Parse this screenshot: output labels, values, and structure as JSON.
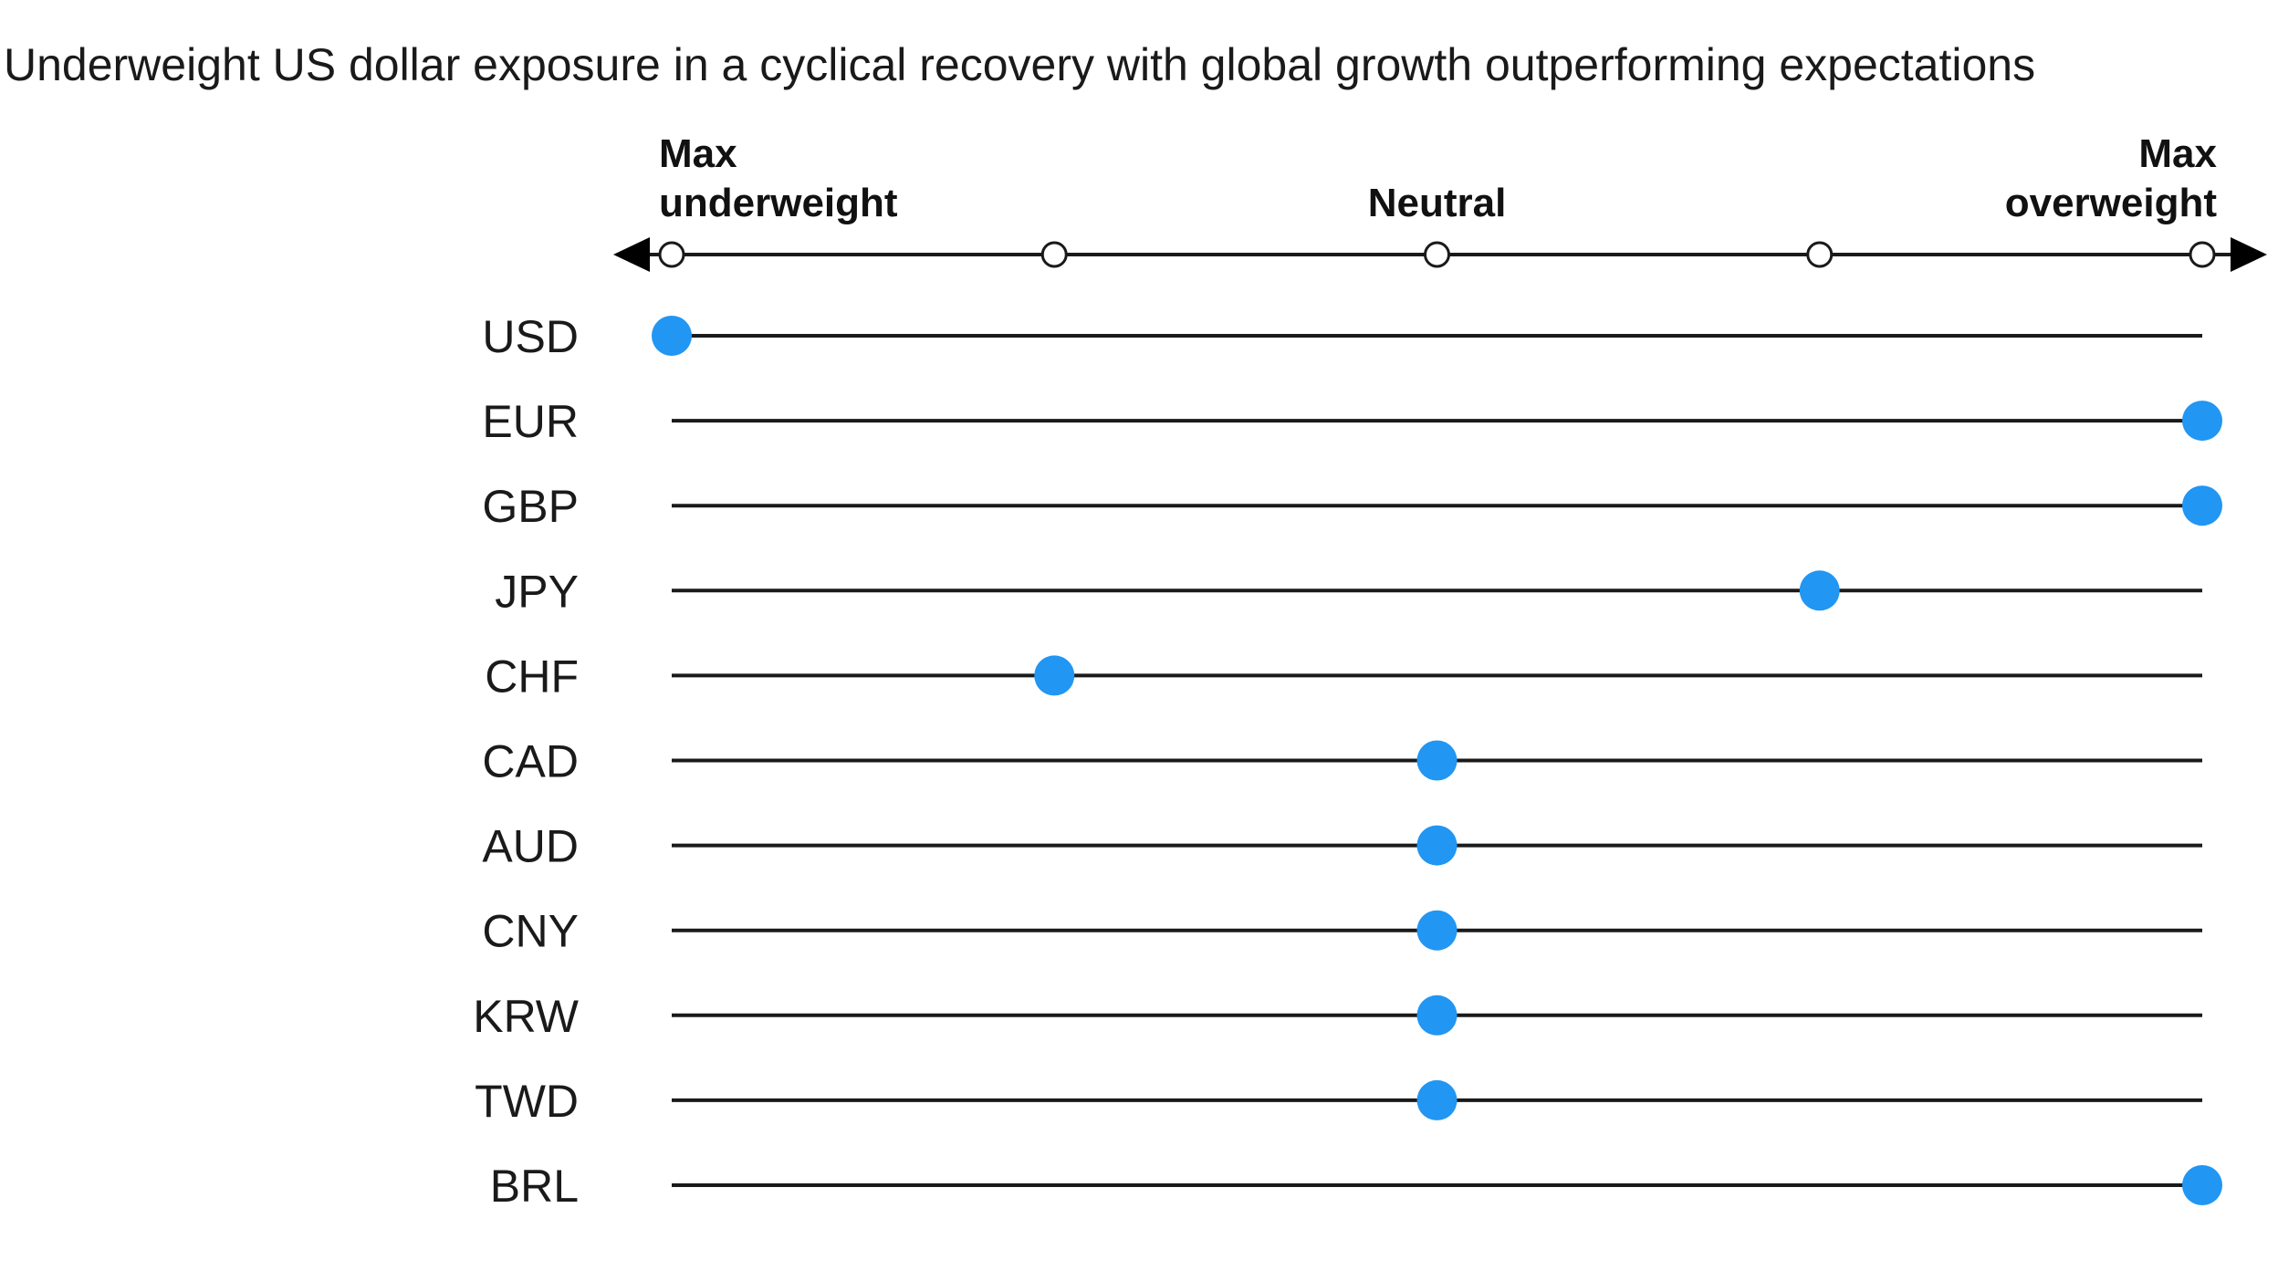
{
  "chart_data": {
    "type": "scatter",
    "title": "Underweight US dollar exposure in a cyclical recovery with global growth outperforming expectations",
    "scale": {
      "min": -2,
      "max": 2,
      "ticks": [
        -2,
        -1,
        0,
        1,
        2
      ],
      "labels": [
        {
          "value": -2,
          "lines": [
            "Max",
            "underweight"
          ],
          "align": "start"
        },
        {
          "value": 0,
          "lines": [
            "Neutral"
          ],
          "align": "middle"
        },
        {
          "value": 2,
          "lines": [
            "Max",
            "overweight"
          ],
          "align": "end"
        }
      ]
    },
    "categories": [
      "USD",
      "EUR",
      "GBP",
      "JPY",
      "CHF",
      "CAD",
      "AUD",
      "CNY",
      "KRW",
      "TWD",
      "BRL"
    ],
    "values": [
      -2,
      2,
      2,
      1,
      -1,
      0,
      0,
      0,
      0,
      0,
      2
    ],
    "colors": {
      "point": "#2196F3",
      "line": "#1a1a1a",
      "tick_fill": "#ffffff",
      "text": "#1a1a1a"
    }
  }
}
